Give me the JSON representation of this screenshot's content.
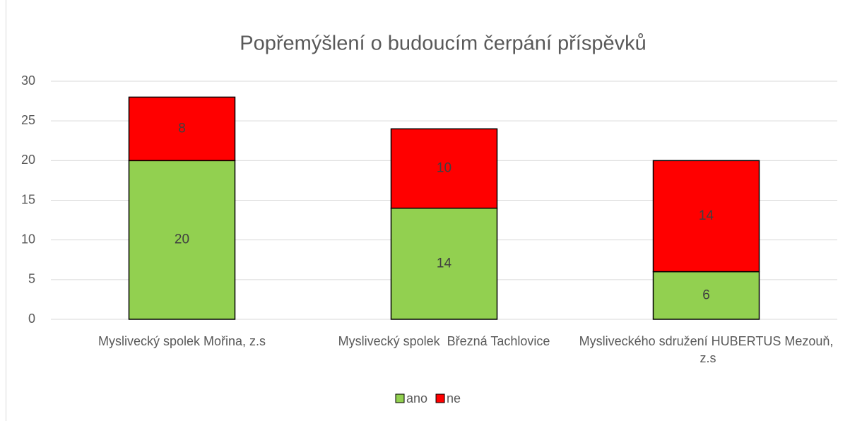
{
  "chart_data": {
    "type": "stacked_bar",
    "title": "Popřemýšlení o budoucím čerpání příspěvků",
    "categories": [
      "Myslivecký spolek Mořina, z.s",
      "Myslivecký spolek  Březná Tachlovice",
      "Mysliveckého sdružení HUBERTUS Mezouň, z.s"
    ],
    "series": [
      {
        "name": "ano",
        "color": "#92d050",
        "values": [
          20,
          14,
          6
        ]
      },
      {
        "name": "ne",
        "color": "#ff0000",
        "values": [
          8,
          10,
          14
        ]
      }
    ],
    "ylim": [
      0,
      30
    ],
    "yticks": [
      0,
      5,
      10,
      15,
      20,
      25,
      30
    ],
    "grid": true,
    "legend": "bottom"
  }
}
